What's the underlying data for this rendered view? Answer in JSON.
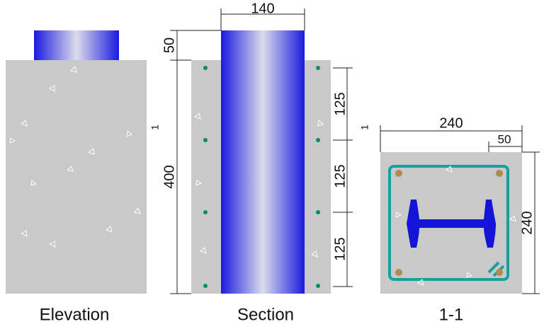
{
  "elevation": {
    "label": "Elevation"
  },
  "section": {
    "label": "Section",
    "dims": {
      "width": 140,
      "top": 50,
      "height": 400,
      "spacing": [
        125,
        125,
        125
      ]
    }
  },
  "cut_marks": [
    "1",
    "1"
  ],
  "section_1_1": {
    "label": "1-1",
    "dims": {
      "width": 240,
      "cover": 50,
      "height": 240
    }
  }
}
